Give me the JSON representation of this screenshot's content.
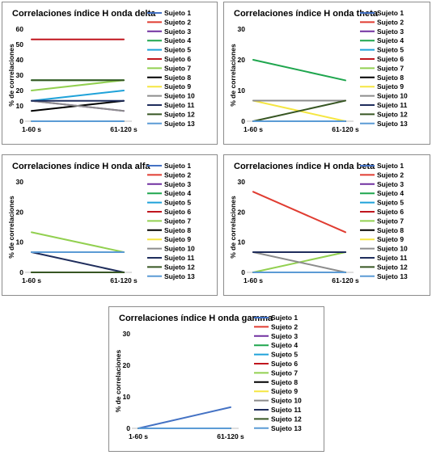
{
  "chart_data": [
    {
      "type": "line",
      "title": "Correlaciones índice H onda delta",
      "ylabel": "% de correlaciones",
      "categories": [
        "1-60 s",
        "61-120 s"
      ],
      "ylim": [
        0,
        60
      ],
      "yticks": [
        0,
        10,
        20,
        30,
        40,
        50,
        60
      ],
      "grid": false,
      "legend": "right",
      "series": [
        {
          "name": "Sujeto 1",
          "color": "#4472c4",
          "values": [
            0,
            0
          ]
        },
        {
          "name": "Sujeto 2",
          "color": "#e03c31",
          "values": [
            0,
            0
          ]
        },
        {
          "name": "Sujeto 3",
          "color": "#7030a0",
          "values": [
            13.3,
            6.7
          ]
        },
        {
          "name": "Sujeto 4",
          "color": "#1fa64e",
          "values": [
            26.7,
            26.7
          ]
        },
        {
          "name": "Sujeto 5",
          "color": "#1fa2d9",
          "values": [
            13.3,
            20
          ]
        },
        {
          "name": "Sujeto 6",
          "color": "#c0161e",
          "values": [
            53.3,
            53.3
          ]
        },
        {
          "name": "Sujeto 7",
          "color": "#92d050",
          "values": [
            20,
            26.7
          ]
        },
        {
          "name": "Sujeto 8",
          "color": "#000000",
          "values": [
            6.7,
            13.3
          ]
        },
        {
          "name": "Sujeto 9",
          "color": "#f5e642",
          "values": [
            0,
            0
          ]
        },
        {
          "name": "Sujeto 10",
          "color": "#8c8c8c",
          "values": [
            13.3,
            6.7
          ]
        },
        {
          "name": "Sujeto 11",
          "color": "#1f2d5c",
          "values": [
            13.3,
            13.3
          ]
        },
        {
          "name": "Sujeto 12",
          "color": "#375623",
          "values": [
            26.7,
            26.7
          ]
        },
        {
          "name": "Sujeto 13",
          "color": "#5b9bd5",
          "values": [
            0,
            0
          ]
        }
      ]
    },
    {
      "type": "line",
      "title": "Correlaciones índice H onda theta",
      "ylabel": "% de correlaciones",
      "categories": [
        "1-60 s",
        "61-120 s"
      ],
      "ylim": [
        0,
        30
      ],
      "yticks": [
        0,
        10,
        20,
        30
      ],
      "grid": false,
      "legend": "right",
      "series": [
        {
          "name": "Sujeto 1",
          "color": "#4472c4",
          "values": [
            0,
            0
          ]
        },
        {
          "name": "Sujeto 2",
          "color": "#e03c31",
          "values": [
            0,
            0
          ]
        },
        {
          "name": "Sujeto 3",
          "color": "#7030a0",
          "values": [
            0,
            0
          ]
        },
        {
          "name": "Sujeto 4",
          "color": "#1fa64e",
          "values": [
            20,
            13.3
          ]
        },
        {
          "name": "Sujeto 5",
          "color": "#1fa2d9",
          "values": [
            0,
            0
          ]
        },
        {
          "name": "Sujeto 6",
          "color": "#c0161e",
          "values": [
            0,
            0
          ]
        },
        {
          "name": "Sujeto 7",
          "color": "#92d050",
          "values": [
            0,
            0
          ]
        },
        {
          "name": "Sujeto 8",
          "color": "#000000",
          "values": [
            0,
            0
          ]
        },
        {
          "name": "Sujeto 9",
          "color": "#f5e642",
          "values": [
            6.7,
            0
          ]
        },
        {
          "name": "Sujeto 10",
          "color": "#8c8c8c",
          "values": [
            6.7,
            6.7
          ]
        },
        {
          "name": "Sujeto 11",
          "color": "#1f2d5c",
          "values": [
            0,
            0
          ]
        },
        {
          "name": "Sujeto 12",
          "color": "#375623",
          "values": [
            0,
            6.7
          ]
        },
        {
          "name": "Sujeto 13",
          "color": "#5b9bd5",
          "values": [
            0,
            0
          ]
        }
      ]
    },
    {
      "type": "line",
      "title": "Correlaciones índice H onda alfa",
      "ylabel": "% de correlaciones",
      "categories": [
        "1-60 s",
        "61-120 s"
      ],
      "ylim": [
        0,
        30
      ],
      "yticks": [
        0,
        10,
        20,
        30
      ],
      "grid": false,
      "legend": "right",
      "series": [
        {
          "name": "Sujeto 1",
          "color": "#4472c4",
          "values": [
            0,
            0
          ]
        },
        {
          "name": "Sujeto 2",
          "color": "#e03c31",
          "values": [
            0,
            0
          ]
        },
        {
          "name": "Sujeto 3",
          "color": "#7030a0",
          "values": [
            0,
            0
          ]
        },
        {
          "name": "Sujeto 4",
          "color": "#1fa64e",
          "values": [
            0,
            0
          ]
        },
        {
          "name": "Sujeto 5",
          "color": "#1fa2d9",
          "values": [
            6.7,
            6.7
          ]
        },
        {
          "name": "Sujeto 6",
          "color": "#c0161e",
          "values": [
            0,
            0
          ]
        },
        {
          "name": "Sujeto 7",
          "color": "#92d050",
          "values": [
            13.3,
            6.7
          ]
        },
        {
          "name": "Sujeto 8",
          "color": "#000000",
          "values": [
            0,
            0
          ]
        },
        {
          "name": "Sujeto 9",
          "color": "#f5e642",
          "values": [
            0,
            0
          ]
        },
        {
          "name": "Sujeto 10",
          "color": "#8c8c8c",
          "values": [
            0,
            0
          ]
        },
        {
          "name": "Sujeto 11",
          "color": "#1f2d5c",
          "values": [
            6.7,
            0
          ]
        },
        {
          "name": "Sujeto 12",
          "color": "#375623",
          "values": [
            0,
            0
          ]
        },
        {
          "name": "Sujeto 13",
          "color": "#5b9bd5",
          "values": [
            6.7,
            6.7
          ]
        }
      ]
    },
    {
      "type": "line",
      "title": "Correlaciones índice H onda beta",
      "ylabel": "% de correlaciones",
      "categories": [
        "1-60 s",
        "61-120 s"
      ],
      "ylim": [
        0,
        30
      ],
      "yticks": [
        0,
        10,
        20,
        30
      ],
      "grid": false,
      "legend": "right",
      "series": [
        {
          "name": "Sujeto 1",
          "color": "#4472c4",
          "values": [
            0,
            0
          ]
        },
        {
          "name": "Sujeto 2",
          "color": "#e03c31",
          "values": [
            26.7,
            13.3
          ]
        },
        {
          "name": "Sujeto 3",
          "color": "#7030a0",
          "values": [
            0,
            0
          ]
        },
        {
          "name": "Sujeto 4",
          "color": "#1fa64e",
          "values": [
            0,
            0
          ]
        },
        {
          "name": "Sujeto 5",
          "color": "#1fa2d9",
          "values": [
            0,
            0
          ]
        },
        {
          "name": "Sujeto 6",
          "color": "#c0161e",
          "values": [
            0,
            0
          ]
        },
        {
          "name": "Sujeto 7",
          "color": "#92d050",
          "values": [
            0,
            6.7
          ]
        },
        {
          "name": "Sujeto 8",
          "color": "#000000",
          "values": [
            6.7,
            6.7
          ]
        },
        {
          "name": "Sujeto 9",
          "color": "#f5e642",
          "values": [
            0,
            0
          ]
        },
        {
          "name": "Sujeto 10",
          "color": "#8c8c8c",
          "values": [
            6.7,
            0
          ]
        },
        {
          "name": "Sujeto 11",
          "color": "#1f2d5c",
          "values": [
            6.7,
            6.7
          ]
        },
        {
          "name": "Sujeto 12",
          "color": "#375623",
          "values": [
            0,
            0
          ]
        },
        {
          "name": "Sujeto 13",
          "color": "#5b9bd5",
          "values": [
            0,
            0
          ]
        }
      ]
    },
    {
      "type": "line",
      "title": "Correlaciones índice H onda gamma",
      "ylabel": "% de correlaciones",
      "categories": [
        "1-60 s",
        "61-120 s"
      ],
      "ylim": [
        0,
        30
      ],
      "yticks": [
        0,
        10,
        20,
        30
      ],
      "grid": false,
      "legend": "right",
      "series": [
        {
          "name": "Sujeto 1",
          "color": "#4472c4",
          "values": [
            0,
            6.7
          ]
        },
        {
          "name": "Sujeto 2",
          "color": "#e03c31",
          "values": [
            0,
            0
          ]
        },
        {
          "name": "Sujeto 3",
          "color": "#7030a0",
          "values": [
            0,
            0
          ]
        },
        {
          "name": "Sujeto 4",
          "color": "#1fa64e",
          "values": [
            0,
            0
          ]
        },
        {
          "name": "Sujeto 5",
          "color": "#1fa2d9",
          "values": [
            0,
            0
          ]
        },
        {
          "name": "Sujeto 6",
          "color": "#c0161e",
          "values": [
            0,
            0
          ]
        },
        {
          "name": "Sujeto 7",
          "color": "#92d050",
          "values": [
            0,
            0
          ]
        },
        {
          "name": "Sujeto 8",
          "color": "#000000",
          "values": [
            0,
            0
          ]
        },
        {
          "name": "Sujeto 9",
          "color": "#f5e642",
          "values": [
            0,
            0
          ]
        },
        {
          "name": "Sujeto 10",
          "color": "#8c8c8c",
          "values": [
            0,
            0
          ]
        },
        {
          "name": "Sujeto 11",
          "color": "#1f2d5c",
          "values": [
            0,
            0
          ]
        },
        {
          "name": "Sujeto 12",
          "color": "#375623",
          "values": [
            0,
            0
          ]
        },
        {
          "name": "Sujeto 13",
          "color": "#5b9bd5",
          "values": [
            0,
            0
          ]
        }
      ]
    }
  ]
}
